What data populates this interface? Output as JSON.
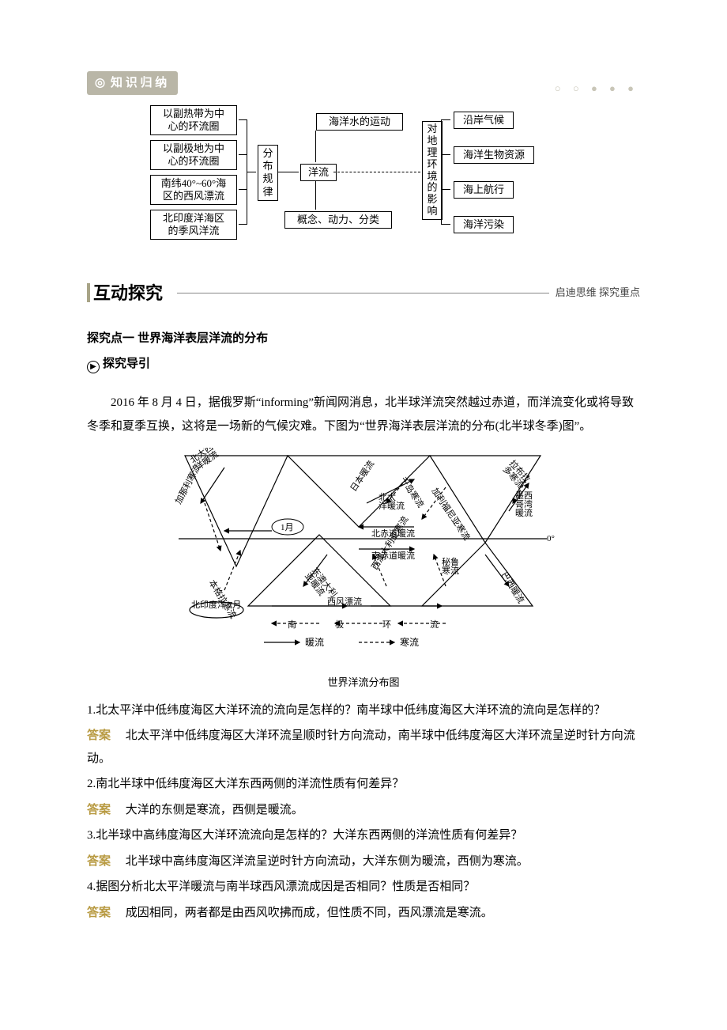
{
  "header": {
    "pill_label": "知 识 归 纳",
    "dot_decor": "○ ○ ● ● ●"
  },
  "concept_map": {
    "left_nodes": [
      "以副热带为中\n心的环流圈",
      "以副极地为中\n心的环流圈",
      "南纬40°~60°海\n区的西风漂流",
      "北印度洋海区\n的季风洋流"
    ],
    "mid_top": "海洋水的运动",
    "mid_spine_label": "分\n布\n规\n律",
    "center": "洋流",
    "mid_bottom": "概念、动力、分类",
    "effect_spine": "对\n地\n理\n环\n境\n的\n影\n响",
    "right_nodes": [
      "沿岸气候",
      "海洋生物资源",
      "海上航行",
      "海洋污染"
    ]
  },
  "hudong": {
    "title": "互动探究",
    "subtitle": "启迪思维  探究重点"
  },
  "topic1": {
    "heading": "探究点一  世界海洋表层洋流的分布",
    "daoyin_label": "探究导引",
    "intro": "2016 年 8 月 4 日，据俄罗斯“informing”新闻网消息，北半球洋流突然越过赤道，而洋流变化或将导致冬季和夏季互换，这将是一场新的气候灾难。下图为“世界海洋表层洋流的分布(北半球冬季)图”。"
  },
  "figure2": {
    "labels": {
      "na_warm": "北大西\n洋暖流",
      "canary": "加那利寒流",
      "benguela": "本格拉寒流",
      "n_indian_july": "北印度洋 7月",
      "jan": "1月",
      "gulf": "墨西\n哥湾\n暖流",
      "labrador": "拉布拉\n多寒流",
      "kuroshio": "日本暖流",
      "cal": "加利福尼亚寒流",
      "n_pac_warm": "北太\n洋暖流",
      "chishima": "千岛寒流",
      "n_eq": "北赤道暖流",
      "s_eq": "南赤道暖流",
      "e_aus": "东澳大利\n亚暖流",
      "w_aus": "西澳大利亚寒流",
      "peru": "秘鲁\n寒流",
      "brazil": "巴西暖流",
      "west_wind": "西风漂流",
      "s_polar_l": "南",
      "s_polar_m": "极",
      "s_polar_r": "环",
      "s_polar_e": "流",
      "warm_legend": "暖流",
      "cold_legend": "寒流",
      "equator": "0°"
    },
    "caption": "世界洋流分布图"
  },
  "qa": [
    {
      "q": "1.北太平洋中低纬度海区大洋环流的流向是怎样的？南半球中低纬度海区大洋环流的流向是怎样的？",
      "a": "北太平洋中低纬度海区大洋环流呈顺时针方向流动，南半球中低纬度海区大洋环流呈逆时针方向流动。"
    },
    {
      "q": "2.南北半球中低纬度海区大洋东西两侧的洋流性质有何差异？",
      "a": "大洋的东侧是寒流，西侧是暖流。"
    },
    {
      "q": "3.北半球中高纬度海区大洋环流流向是怎样的？大洋东西两侧的洋流性质有何差异？",
      "a": "北半球中高纬度海区洋流呈逆时针方向流动，大洋东侧为暖流，西侧为寒流。"
    },
    {
      "q": "4.据图分析北太平洋暖流与南半球西风漂流成因是否相同？性质是否相同？",
      "a": "成因相同，两者都是由西风吹拂而成，但性质不同，西风漂流是寒流。"
    }
  ],
  "answer_label": "答案"
}
